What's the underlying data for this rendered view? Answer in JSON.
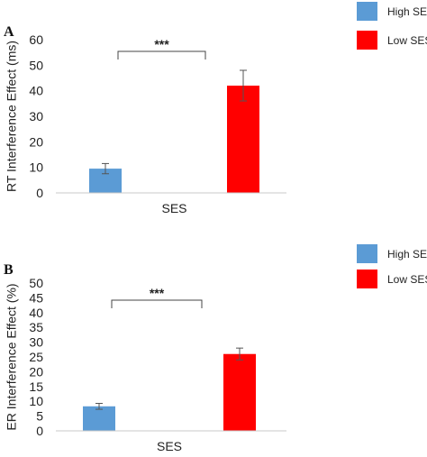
{
  "chart_data": [
    {
      "type": "bar",
      "panel": "A",
      "categories": [
        "SES"
      ],
      "series": [
        {
          "name": "High SES",
          "values": [
            9.5
          ],
          "error": [
            2
          ],
          "color": "#5B9BD5"
        },
        {
          "name": "Low SES",
          "values": [
            42
          ],
          "error": [
            6
          ],
          "color": "#FF0000"
        }
      ],
      "xlabel": "SES",
      "ylabel": "RT Interference Effect (ms)",
      "ylim": [
        0,
        60
      ],
      "yticks": [
        0,
        10,
        20,
        30,
        40,
        50,
        60
      ],
      "significance": "***",
      "legend_position": "top-right",
      "grid": false
    },
    {
      "type": "bar",
      "panel": "B",
      "categories": [
        "SES"
      ],
      "series": [
        {
          "name": "High SES",
          "values": [
            8.3
          ],
          "error": [
            1
          ],
          "color": "#5B9BD5"
        },
        {
          "name": "Low SES",
          "values": [
            26
          ],
          "error": [
            2
          ],
          "color": "#FF0000"
        }
      ],
      "xlabel": "SES",
      "ylabel": "ER Interference Effect (%)",
      "ylim": [
        0,
        50
      ],
      "yticks": [
        0,
        5,
        10,
        15,
        20,
        25,
        30,
        35,
        40,
        45,
        50
      ],
      "significance": "***",
      "legend_position": "top-right",
      "grid": false
    }
  ]
}
